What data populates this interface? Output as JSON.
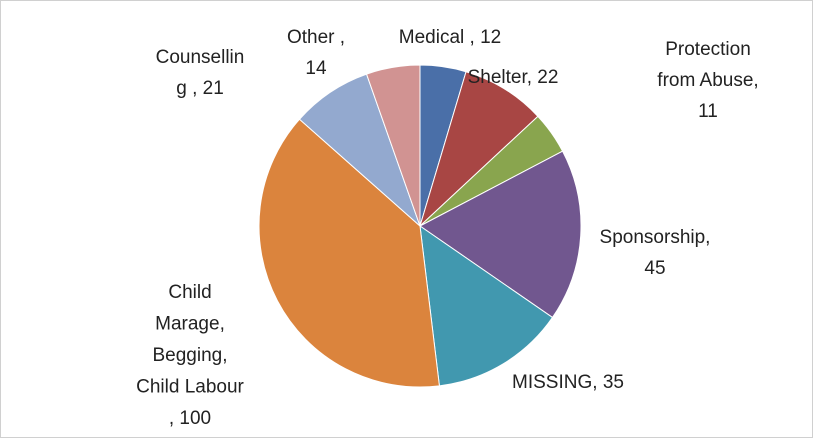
{
  "chart_data": {
    "type": "pie",
    "values": [
      12,
      22,
      11,
      45,
      35,
      100,
      21,
      14
    ],
    "value_labels": [
      [
        "Medical , 12"
      ],
      [
        "Shelter, 22"
      ],
      [
        "Protection",
        "from Abuse,",
        "11"
      ],
      [
        "Sponsorship,",
        "45"
      ],
      [
        "MISSING, 35"
      ],
      [
        "Child",
        "Marage,",
        "Begging,",
        "Child Labour",
        ", 100"
      ],
      [
        "Counsellin",
        "g , 21"
      ],
      [
        "Other ,",
        "14"
      ]
    ],
    "colors": [
      "#4a6fa8",
      "#a84644",
      "#89a54e",
      "#71578f",
      "#4198af",
      "#db843d",
      "#93a9cf",
      "#d19392"
    ]
  }
}
